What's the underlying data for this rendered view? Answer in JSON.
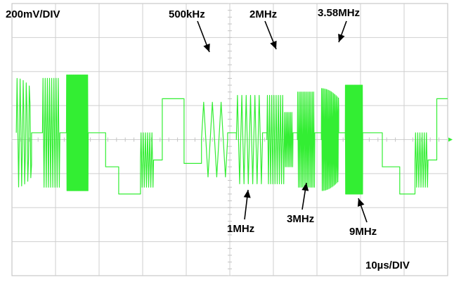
{
  "chart_data": {
    "type": "line",
    "instrument": "oscilloscope",
    "vertical_scale": "200mV/DIV",
    "horizontal_scale": "10µs/DIV",
    "grid": true,
    "divisions": {
      "x": 10,
      "y": 8
    },
    "trace_color": "#33ee33",
    "annotations": [
      {
        "text": "500kHz",
        "at_time_div": 4.4
      },
      {
        "text": "2MHz",
        "at_time_div": 6.1
      },
      {
        "text": "3.58MHz",
        "at_time_div": 7.3
      },
      {
        "text": "1MHz",
        "at_time_div": 5.3
      },
      {
        "text": "3MHz",
        "at_time_div": 6.7
      },
      {
        "text": "9MHz",
        "at_time_div": 7.9
      }
    ],
    "segments": [
      {
        "kind": "burst",
        "t0": 0.1,
        "t1": 0.45,
        "amp": 1.6,
        "base": 0.2,
        "freq": 14
      },
      {
        "kind": "flat",
        "t0": 0.45,
        "t1": 0.7,
        "level": 0.2
      },
      {
        "kind": "burst",
        "t0": 0.7,
        "t1": 1.1,
        "amp": 1.6,
        "base": 0.2,
        "freq": 20
      },
      {
        "kind": "flat",
        "t0": 1.1,
        "t1": 1.25,
        "level": 0.2
      },
      {
        "kind": "burst",
        "t0": 1.25,
        "t1": 1.75,
        "amp": 1.7,
        "base": 0.2,
        "freq": 60
      },
      {
        "kind": "flat",
        "t0": 1.75,
        "t1": 2.15,
        "level": 0.2
      },
      {
        "kind": "flat",
        "t0": 2.15,
        "t1": 2.45,
        "level": -0.8
      },
      {
        "kind": "flat",
        "t0": 2.45,
        "t1": 2.95,
        "level": -1.6
      },
      {
        "kind": "burst",
        "t0": 2.95,
        "t1": 3.25,
        "amp": 0.8,
        "base": -0.6,
        "freq": 20
      },
      {
        "kind": "flat",
        "t0": 3.25,
        "t1": 3.45,
        "level": -0.6
      },
      {
        "kind": "flat",
        "t0": 3.45,
        "t1": 3.95,
        "level": 1.2
      },
      {
        "kind": "flat",
        "t0": 3.95,
        "t1": 4.35,
        "level": -0.7
      },
      {
        "kind": "burst",
        "t0": 4.35,
        "t1": 4.95,
        "amp": 1.1,
        "base": 0.0,
        "freq": 5
      },
      {
        "kind": "flat",
        "t0": 4.95,
        "t1": 5.15,
        "level": 0.2
      },
      {
        "kind": "burst",
        "t0": 5.15,
        "t1": 5.75,
        "amp": 1.3,
        "base": 0.0,
        "freq": 10
      },
      {
        "kind": "flat",
        "t0": 5.75,
        "t1": 5.85,
        "level": 0.2
      },
      {
        "kind": "burst",
        "t0": 5.85,
        "t1": 6.25,
        "amp": 1.3,
        "base": 0.0,
        "freq": 20
      },
      {
        "kind": "burst",
        "t0": 6.25,
        "t1": 6.45,
        "amp": 0.8,
        "base": 0.0,
        "freq": 30
      },
      {
        "kind": "flat",
        "t0": 6.45,
        "t1": 6.55,
        "level": 0.2
      },
      {
        "kind": "burst",
        "t0": 6.55,
        "t1": 6.95,
        "amp": 1.4,
        "base": 0.0,
        "freq": 30
      },
      {
        "kind": "flat",
        "t0": 6.95,
        "t1": 7.1,
        "level": 0.2
      },
      {
        "kind": "burst",
        "t0": 7.1,
        "t1": 7.5,
        "amp": 1.5,
        "base": 0.0,
        "freq": 36
      },
      {
        "kind": "flat",
        "t0": 7.5,
        "t1": 7.65,
        "level": 0.2
      },
      {
        "kind": "burst",
        "t0": 7.65,
        "t1": 8.05,
        "amp": 1.6,
        "base": 0.0,
        "freq": 90
      },
      {
        "kind": "flat",
        "t0": 8.05,
        "t1": 8.5,
        "level": 0.2
      },
      {
        "kind": "flat",
        "t0": 8.5,
        "t1": 8.9,
        "level": -0.8
      },
      {
        "kind": "flat",
        "t0": 8.9,
        "t1": 9.25,
        "level": -1.6
      },
      {
        "kind": "burst",
        "t0": 9.25,
        "t1": 9.55,
        "amp": 0.8,
        "base": -0.6,
        "freq": 20
      },
      {
        "kind": "flat",
        "t0": 9.55,
        "t1": 9.75,
        "level": -0.6
      },
      {
        "kind": "flat",
        "t0": 9.75,
        "t1": 10.0,
        "level": 1.2
      }
    ]
  }
}
